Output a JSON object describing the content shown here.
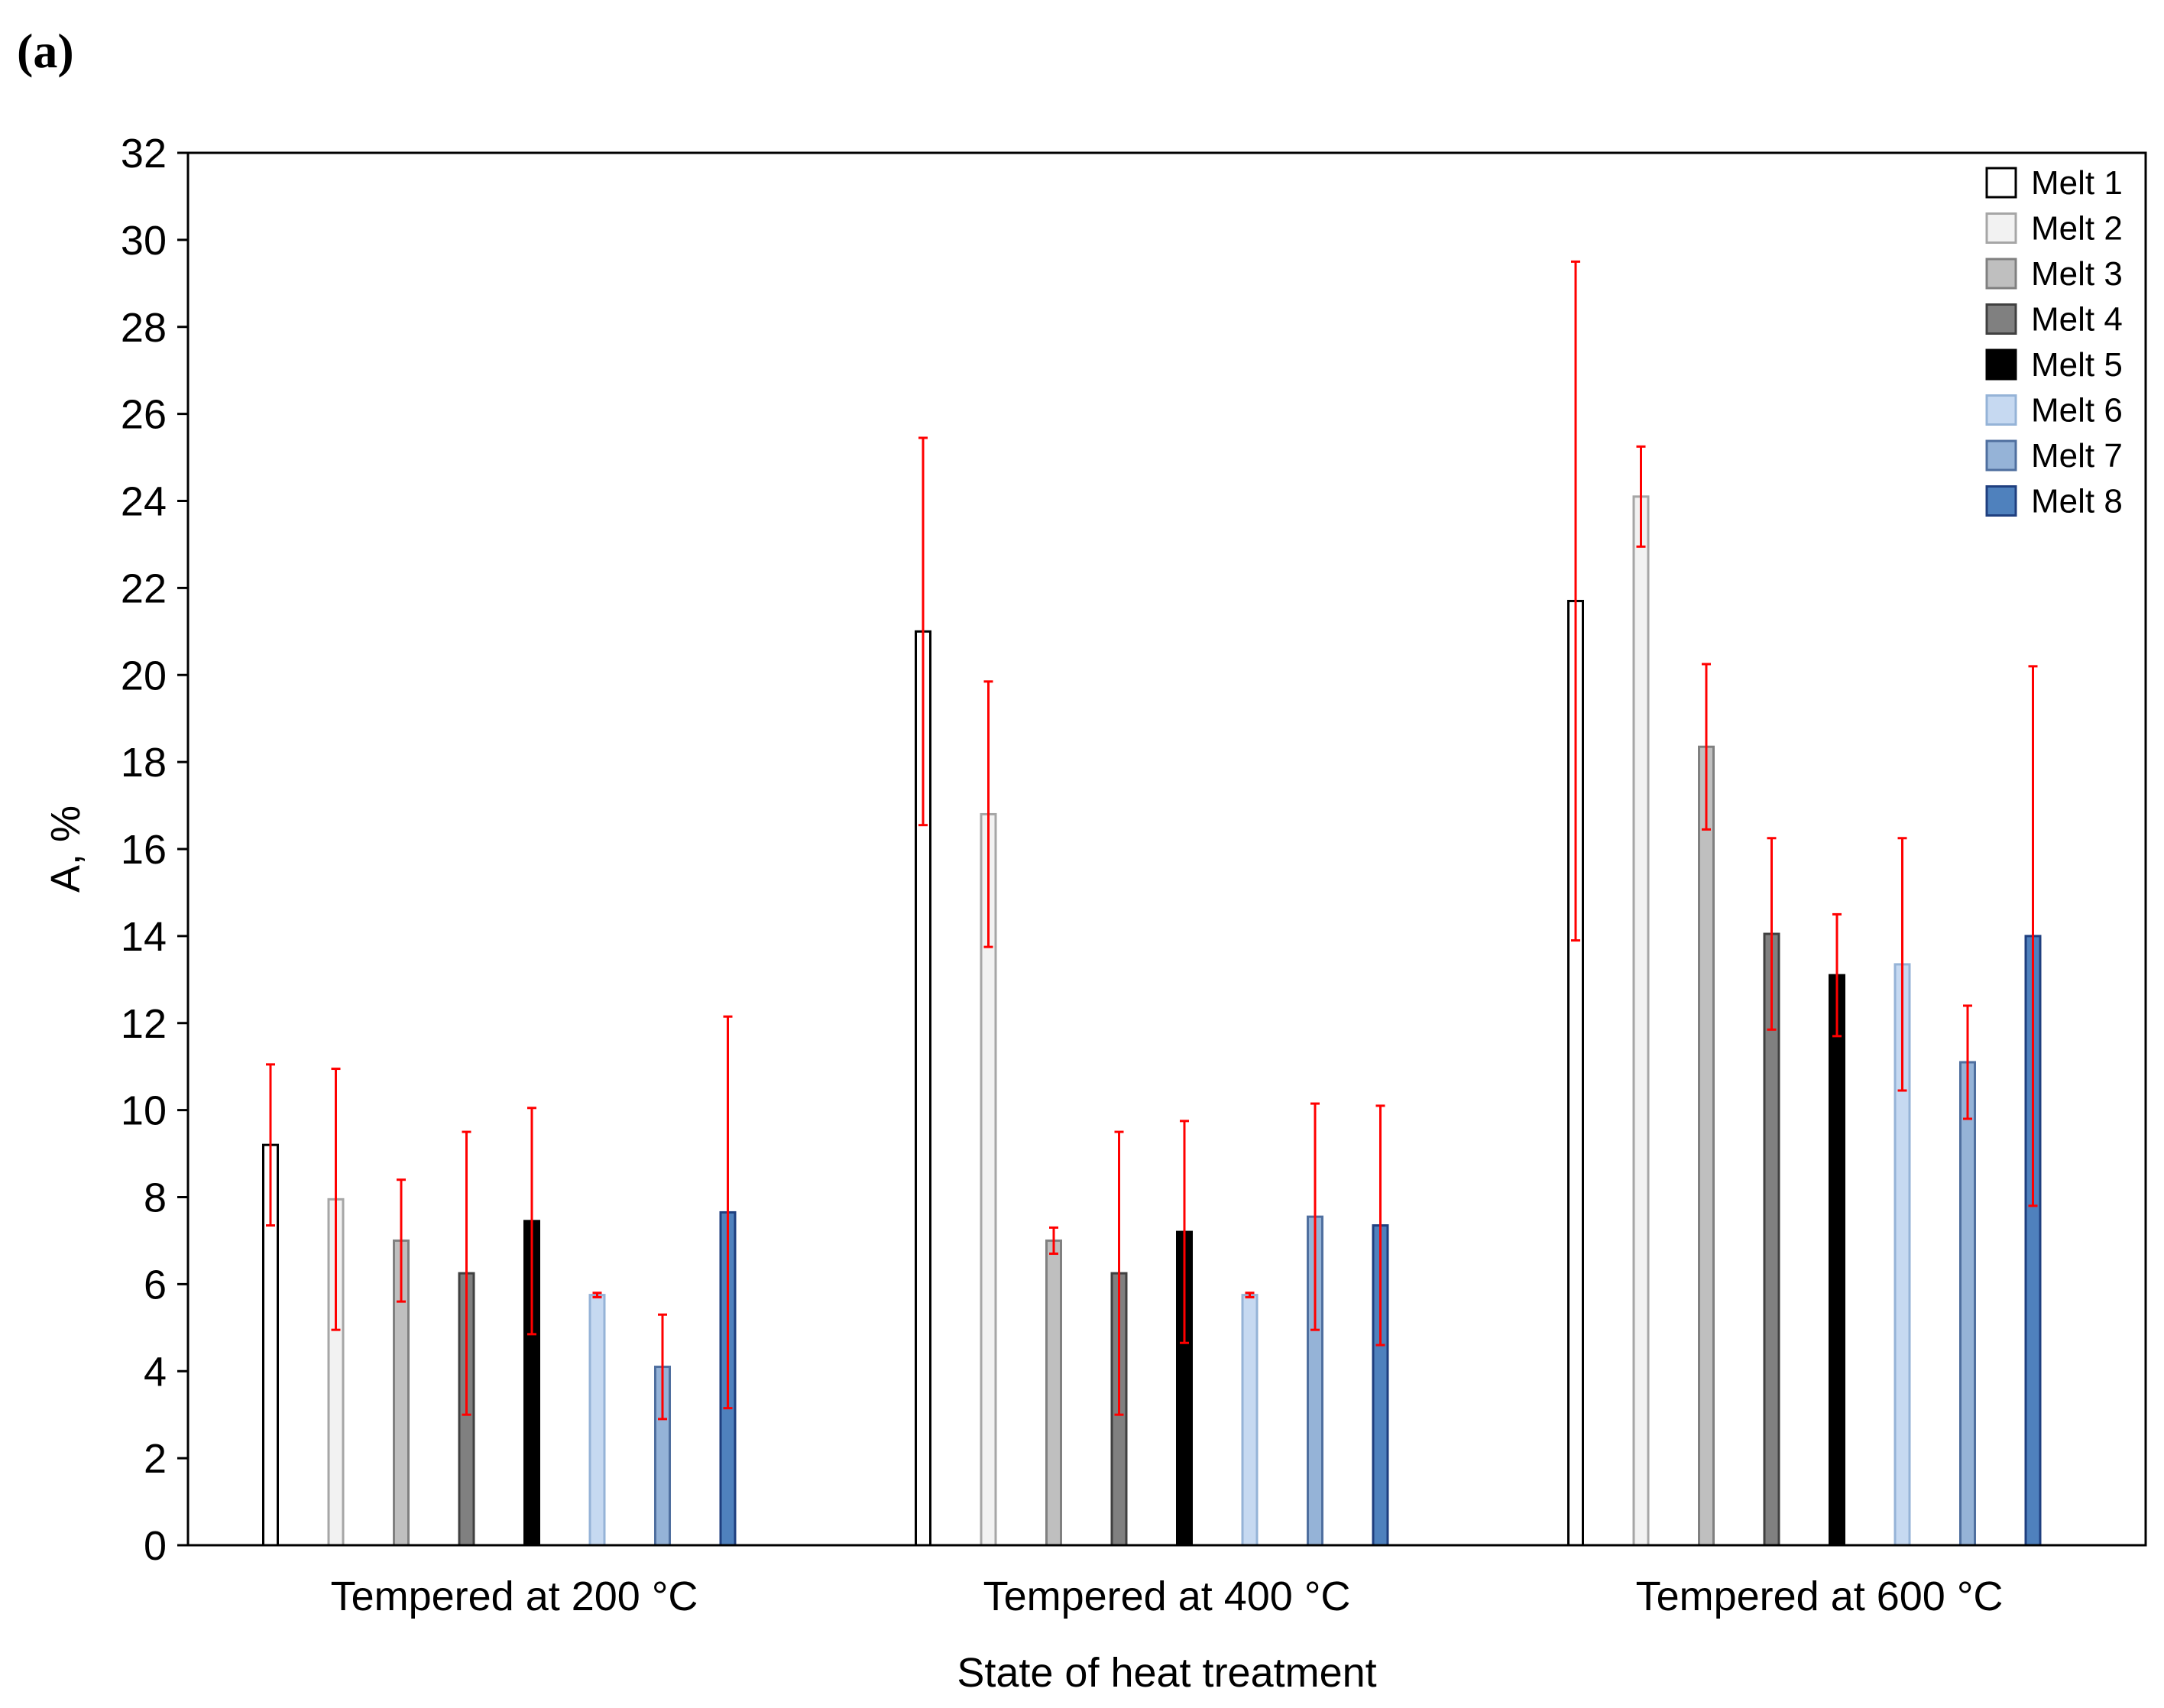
{
  "panel_label": "(a)",
  "colors": {
    "error_bar": "#ff0000",
    "axis": "#000000",
    "series": [
      "#ffffff",
      "#f2f2f2",
      "#bfbfbf",
      "#808080",
      "#000000",
      "#c6d9f1",
      "#95b3d7",
      "#4f81bd"
    ],
    "series_stroke": [
      "#000000",
      "#a6a6a6",
      "#808080",
      "#404040",
      "#000000",
      "#95b3d7",
      "#4f6f9f",
      "#1f3f7f"
    ]
  },
  "chart_data": {
    "type": "bar",
    "title": "",
    "xlabel": "State of heat treatment",
    "ylabel": "A, %",
    "ylim": [
      0,
      32
    ],
    "yticks": [
      0,
      2,
      4,
      6,
      8,
      10,
      12,
      14,
      16,
      18,
      20,
      22,
      24,
      26,
      28,
      30,
      32
    ],
    "grid": false,
    "legend_position": "top-right",
    "categories": [
      "Tempered at 200 °C",
      "Tempered at 400 °C",
      "Tempered at 600 °C"
    ],
    "series": [
      {
        "name": "Melt 1",
        "values": [
          9.2,
          21.0,
          21.7
        ],
        "errors": [
          1.85,
          4.45,
          7.8
        ]
      },
      {
        "name": "Melt 2",
        "values": [
          7.95,
          16.8,
          24.1
        ],
        "errors": [
          3.0,
          3.05,
          1.15
        ]
      },
      {
        "name": "Melt 3",
        "values": [
          7.0,
          7.0,
          18.35
        ],
        "errors": [
          1.4,
          0.3,
          1.9
        ]
      },
      {
        "name": "Melt 4",
        "values": [
          6.25,
          6.25,
          14.05
        ],
        "errors": [
          3.25,
          3.25,
          2.2
        ]
      },
      {
        "name": "Melt 5",
        "values": [
          7.45,
          7.2,
          13.1
        ],
        "errors": [
          2.6,
          2.55,
          1.4
        ]
      },
      {
        "name": "Melt 6",
        "values": [
          5.75,
          5.75,
          13.35
        ],
        "errors": [
          0.05,
          0.05,
          2.9
        ]
      },
      {
        "name": "Melt 7",
        "values": [
          4.1,
          7.55,
          11.1
        ],
        "errors": [
          1.2,
          2.6,
          1.3
        ]
      },
      {
        "name": "Melt 8",
        "values": [
          7.65,
          7.35,
          14.0
        ],
        "errors": [
          4.5,
          2.75,
          6.2
        ]
      }
    ]
  }
}
